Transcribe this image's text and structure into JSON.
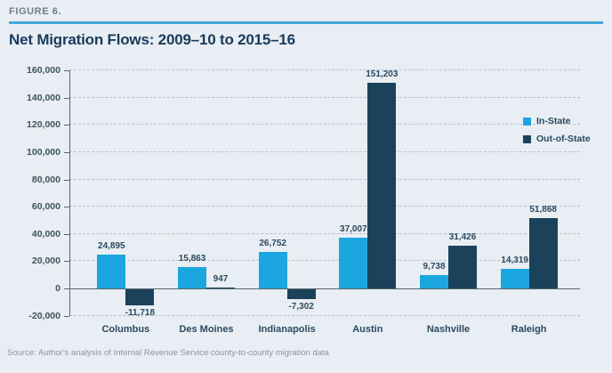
{
  "figure": {
    "label": "FIGURE 6.",
    "title": "Net Migration Flows: 2009–10 to 2015–16",
    "source": "Source: Author's analysis of Internal Revenue Service county-to-county migration data"
  },
  "legend": {
    "items": [
      {
        "label": "In-State",
        "color": "#1ca6e0"
      },
      {
        "label": "Out-of-State",
        "color": "#1b425a"
      }
    ]
  },
  "colors": {
    "background": "#e8eef3",
    "rule": "#45a6d9",
    "in_state": "#1ca6e0",
    "out_of_state": "#1b425a",
    "title_text": "#1a3a5c",
    "axis_line": "#56666f",
    "gridline": "#b7c3cb",
    "tick_text": "#3d5363",
    "label_text": "#2c4a60",
    "source_text": "#8a96a0"
  },
  "chart_data": {
    "type": "bar",
    "title": "Net Migration Flows: 2009–10 to 2015–16",
    "categories": [
      "Columbus",
      "Des Moines",
      "Indianapolis",
      "Austin",
      "Nashville",
      "Raleigh"
    ],
    "series": [
      {
        "name": "In-State",
        "color": "#1ca6e0",
        "values": [
          24895,
          15863,
          26752,
          37007,
          9738,
          14319
        ]
      },
      {
        "name": "Out-of-State",
        "color": "#1b425a",
        "values": [
          -11718,
          947,
          -7302,
          151203,
          31426,
          51868
        ]
      }
    ],
    "value_labels": [
      [
        "24,895",
        "15,863",
        "26,752",
        "37,007",
        "9,738",
        "14,319"
      ],
      [
        "-11,718",
        "947",
        "-7,302",
        "151,203",
        "31,426",
        "51,868"
      ]
    ],
    "xlabel": "",
    "ylabel": "",
    "ylim": [
      -20000,
      160000
    ],
    "yticks": [
      -20000,
      0,
      20000,
      40000,
      60000,
      80000,
      100000,
      120000,
      140000,
      160000
    ],
    "ytick_labels": [
      "-20,000",
      "0",
      "20,000",
      "40,000",
      "60,000",
      "80,000",
      "100,000",
      "120,000",
      "140,000",
      "160,000"
    ],
    "grid": "horizontal-dashed",
    "legend_position": "inside-right"
  }
}
